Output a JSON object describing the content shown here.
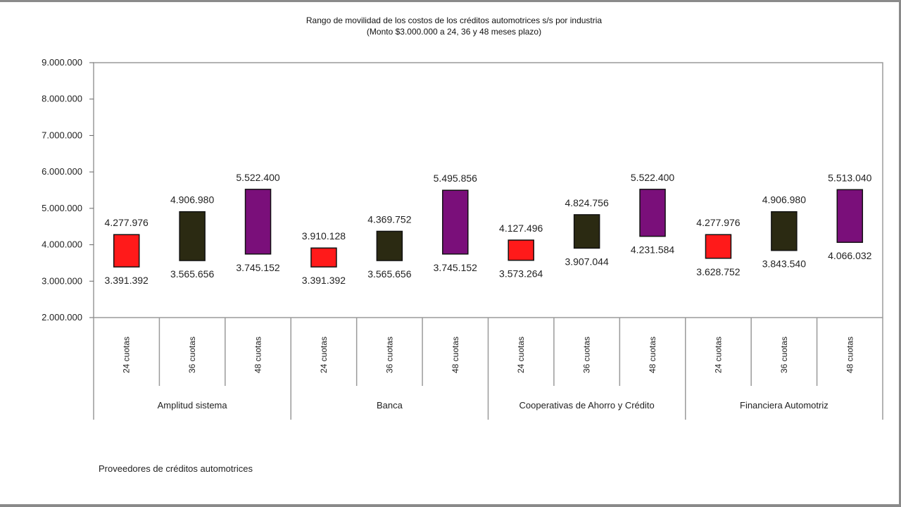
{
  "chart_data": {
    "type": "bar",
    "subtype": "floating-range",
    "title": "Rango de movilidad de los costos de los créditos automotrices s/s por industria",
    "subtitle": "(Monto $3.000.000 a 24, 36 y 48 meses plazo)",
    "xlabel": "Proveedores de créditos automotrices",
    "ylabel": "",
    "ylim": [
      2000000,
      9000000
    ],
    "yticks": [
      2000000,
      3000000,
      4000000,
      5000000,
      6000000,
      7000000,
      8000000,
      9000000
    ],
    "ytick_labels": [
      "2.000.000",
      "3.000.000",
      "4.000.000",
      "5.000.000",
      "6.000.000",
      "7.000.000",
      "8.000.000",
      "9.000.000"
    ],
    "grid": false,
    "legend": "none",
    "term_colors": [
      "#ff1a1a",
      "#2b2a12",
      "#7a0f7a"
    ],
    "groups": [
      {
        "name": "Amplitud sistema",
        "items": [
          {
            "category": "24 cuotas",
            "low": 3391392,
            "high": 4277976,
            "low_label": "3.391.392",
            "high_label": "4.277.976"
          },
          {
            "category": "36 cuotas",
            "low": 3565656,
            "high": 4906980,
            "low_label": "3.565.656",
            "high_label": "4.906.980"
          },
          {
            "category": "48 cuotas",
            "low": 3745152,
            "high": 5522400,
            "low_label": "3.745.152",
            "high_label": "5.522.400"
          }
        ]
      },
      {
        "name": "Banca",
        "items": [
          {
            "category": "24 cuotas",
            "low": 3391392,
            "high": 3910128,
            "low_label": "3.391.392",
            "high_label": "3.910.128"
          },
          {
            "category": "36 cuotas",
            "low": 3565656,
            "high": 4369752,
            "low_label": "3.565.656",
            "high_label": "4.369.752"
          },
          {
            "category": "48 cuotas",
            "low": 3745152,
            "high": 5495856,
            "low_label": "3.745.152",
            "high_label": "5.495.856"
          }
        ]
      },
      {
        "name": "Cooperativas de Ahorro y Crédito",
        "items": [
          {
            "category": "24 cuotas",
            "low": 3573264,
            "high": 4127496,
            "low_label": "3.573.264",
            "high_label": "4.127.496"
          },
          {
            "category": "36 cuotas",
            "low": 3907044,
            "high": 4824756,
            "low_label": "3.907.044",
            "high_label": "4.824.756"
          },
          {
            "category": "48 cuotas",
            "low": 4231584,
            "high": 5522400,
            "low_label": "4.231.584",
            "high_label": "5.522.400"
          }
        ]
      },
      {
        "name": "Financiera Automotriz",
        "items": [
          {
            "category": "24 cuotas",
            "low": 3628752,
            "high": 4277976,
            "low_label": "3.628.752",
            "high_label": "4.277.976"
          },
          {
            "category": "36 cuotas",
            "low": 3843540,
            "high": 4906980,
            "low_label": "3.843.540",
            "high_label": "4.906.980"
          },
          {
            "category": "48 cuotas",
            "low": 4066032,
            "high": 5513040,
            "low_label": "4.066.032",
            "high_label": "5.513.040"
          }
        ]
      }
    ]
  }
}
